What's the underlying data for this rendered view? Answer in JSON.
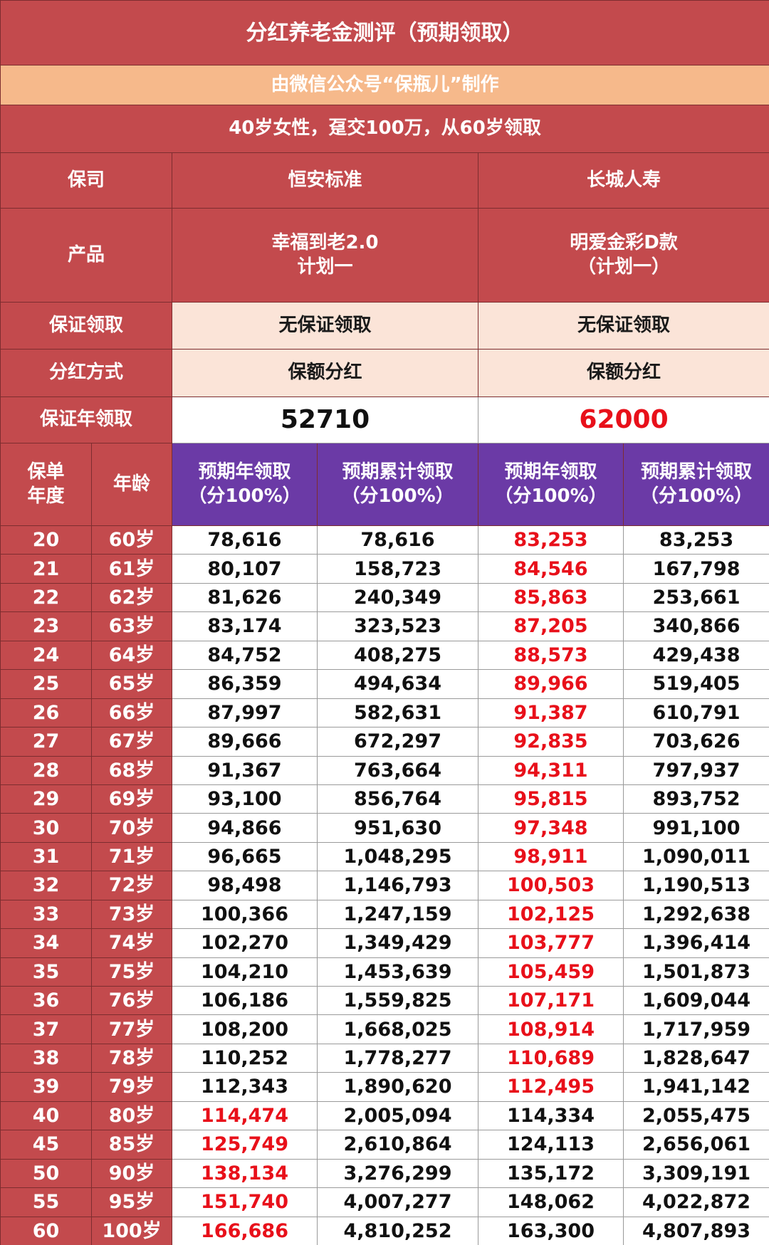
{
  "header": {
    "title": "分红养老金测评（预期领取）",
    "subtitle": "由微信公众号“保瓶儿”制作",
    "condition": "40岁女性，趸交100万，从60岁领取"
  },
  "info_rows": [
    {
      "label": "保司",
      "values": [
        [
          "恒安标准"
        ],
        [
          "长城人寿"
        ]
      ]
    },
    {
      "label": "产品",
      "values": [
        [
          "幸福到老2.0",
          "计划一"
        ],
        [
          "明爱金彩D款",
          "（计划一）"
        ]
      ]
    },
    {
      "label": "保证领取",
      "values": [
        [
          "无保证领取"
        ],
        [
          "无保证领取"
        ]
      ]
    },
    {
      "label": "分红方式",
      "values": [
        [
          "保额分红"
        ],
        [
          "保额分红"
        ]
      ]
    },
    {
      "label": "保证年领取",
      "values": [
        [
          "52710"
        ],
        [
          "62000"
        ]
      ]
    }
  ],
  "table": {
    "columns": [
      [
        "保单",
        "年度"
      ],
      [
        "年龄"
      ],
      [
        "预期年领取",
        "（分100%）"
      ],
      [
        "预期累计领取",
        "（分100%）"
      ],
      [
        "预期年领取",
        "（分100%）"
      ],
      [
        "预期累计领取",
        "（分100%）"
      ]
    ],
    "rows": [
      [
        "20",
        "60岁",
        "78,616",
        "78,616",
        "83,253",
        "83,253"
      ],
      [
        "21",
        "61岁",
        "80,107",
        "158,723",
        "84,546",
        "167,798"
      ],
      [
        "22",
        "62岁",
        "81,626",
        "240,349",
        "85,863",
        "253,661"
      ],
      [
        "23",
        "63岁",
        "83,174",
        "323,523",
        "87,205",
        "340,866"
      ],
      [
        "24",
        "64岁",
        "84,752",
        "408,275",
        "88,573",
        "429,438"
      ],
      [
        "25",
        "65岁",
        "86,359",
        "494,634",
        "89,966",
        "519,405"
      ],
      [
        "26",
        "66岁",
        "87,997",
        "582,631",
        "91,387",
        "610,791"
      ],
      [
        "27",
        "67岁",
        "89,666",
        "672,297",
        "92,835",
        "703,626"
      ],
      [
        "28",
        "68岁",
        "91,367",
        "763,664",
        "94,311",
        "797,937"
      ],
      [
        "29",
        "69岁",
        "93,100",
        "856,764",
        "95,815",
        "893,752"
      ],
      [
        "30",
        "70岁",
        "94,866",
        "951,630",
        "97,348",
        "991,100"
      ],
      [
        "31",
        "71岁",
        "96,665",
        "1,048,295",
        "98,911",
        "1,090,011"
      ],
      [
        "32",
        "72岁",
        "98,498",
        "1,146,793",
        "100,503",
        "1,190,513"
      ],
      [
        "33",
        "73岁",
        "100,366",
        "1,247,159",
        "102,125",
        "1,292,638"
      ],
      [
        "34",
        "74岁",
        "102,270",
        "1,349,429",
        "103,777",
        "1,396,414"
      ],
      [
        "35",
        "75岁",
        "104,210",
        "1,453,639",
        "105,459",
        "1,501,873"
      ],
      [
        "36",
        "76岁",
        "106,186",
        "1,559,825",
        "107,171",
        "1,609,044"
      ],
      [
        "37",
        "77岁",
        "108,200",
        "1,668,025",
        "108,914",
        "1,717,959"
      ],
      [
        "38",
        "78岁",
        "110,252",
        "1,778,277",
        "110,689",
        "1,828,647"
      ],
      [
        "39",
        "79岁",
        "112,343",
        "1,890,620",
        "112,495",
        "1,941,142"
      ],
      [
        "40",
        "80岁",
        "114,474",
        "2,005,094",
        "114,334",
        "2,055,475"
      ],
      [
        "45",
        "85岁",
        "125,749",
        "2,610,864",
        "124,113",
        "2,656,061"
      ],
      [
        "50",
        "90岁",
        "138,134",
        "3,276,299",
        "135,172",
        "3,309,191"
      ],
      [
        "55",
        "95岁",
        "151,740",
        "4,007,277",
        "148,062",
        "4,022,872"
      ],
      [
        "60",
        "100岁",
        "166,686",
        "4,810,252",
        "163,300",
        "4,807,893"
      ]
    ]
  },
  "highlight_color": "#e8101a"
}
